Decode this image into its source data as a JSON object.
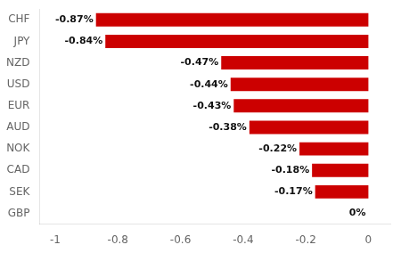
{
  "chart_data": {
    "type": "bar",
    "orientation": "horizontal",
    "categories": [
      "CHF",
      "JPY",
      "NZD",
      "USD",
      "EUR",
      "AUD",
      "NOK",
      "CAD",
      "SEK",
      "GBP"
    ],
    "values": [
      -0.87,
      -0.84,
      -0.47,
      -0.44,
      -0.43,
      -0.38,
      -0.22,
      -0.18,
      -0.17,
      0.0
    ],
    "value_labels": [
      "-0.87%",
      "-0.84%",
      "-0.47%",
      "-0.44%",
      "-0.43%",
      "-0.38%",
      "-0.22%",
      "-0.18%",
      "-0.17%",
      "0%"
    ],
    "color": "#cc0000",
    "xlim": [
      -1.05,
      0.07
    ],
    "xticks": [
      -1,
      -0.8,
      -0.6,
      -0.4,
      -0.2,
      0
    ],
    "grid": false,
    "data_labels": true
  }
}
